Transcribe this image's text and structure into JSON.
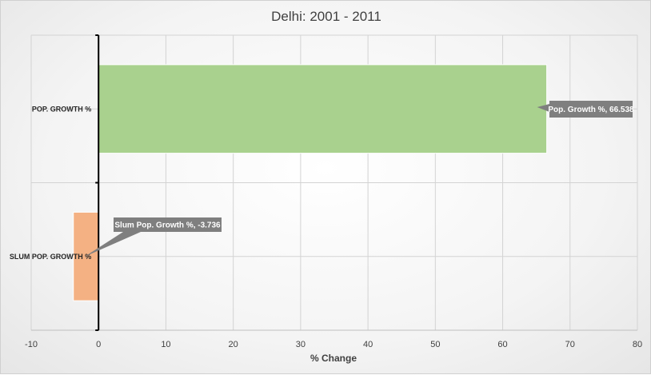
{
  "chart_data": {
    "type": "bar",
    "orientation": "horizontal",
    "title": "Delhi: 2001 - 2011",
    "xlabel": "% Change",
    "ylabel": "",
    "xlim": [
      -10,
      80
    ],
    "xticks": [
      -10,
      0,
      10,
      20,
      30,
      40,
      50,
      60,
      70,
      80
    ],
    "grid": true,
    "legend": "none",
    "categories": [
      "POP. GROWTH %",
      "SLUM POP. GROWTH %"
    ],
    "values": [
      66.538,
      -3.736
    ],
    "colors": [
      "#a9d18e",
      "#f4b183"
    ],
    "data_labels": [
      "Pop. Growth %, 66.538",
      "Slum Pop. Growth %, -3.736"
    ],
    "label_box_color": "#7f7f7f"
  }
}
